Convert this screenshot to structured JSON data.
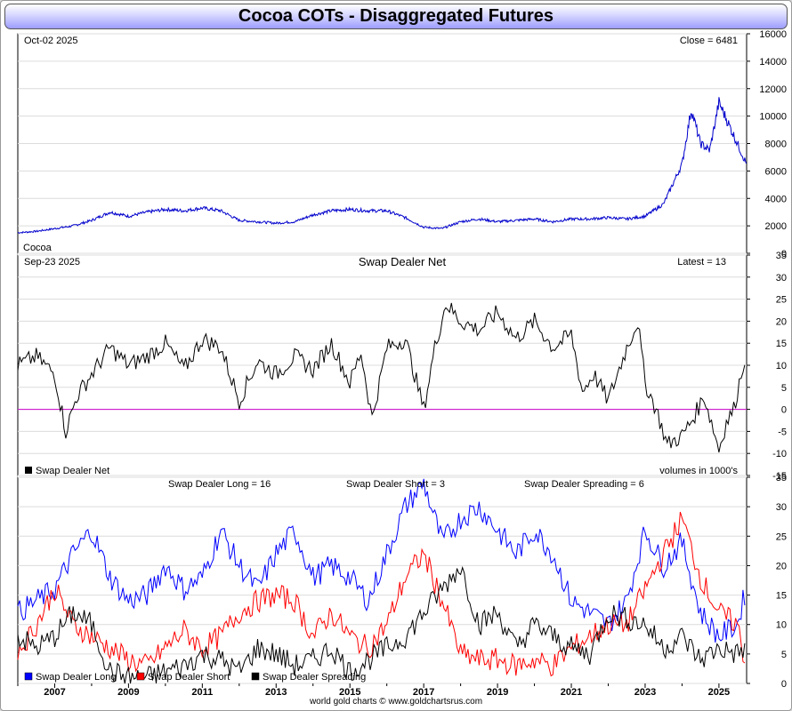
{
  "title": "Cocoa COTs - Disaggregated Futures",
  "footer": "world gold charts © www.goldchartsrus.com",
  "chart_data": [
    {
      "type": "line",
      "panel": "price",
      "date_label": "Oct-02  2025",
      "latest_label": "Close = 6481",
      "series_label": "Cocoa",
      "ylim": [
        0,
        16000
      ],
      "yticks": [
        "0",
        "2000",
        "4000",
        "6000",
        "8000",
        "10000",
        "12000",
        "14000",
        "16000"
      ],
      "color": "#0000cc",
      "series": [
        {
          "name": "Cocoa",
          "x": [
            2006.0,
            2006.5,
            2007.0,
            2007.5,
            2008.0,
            2008.5,
            2009.0,
            2009.5,
            2010.0,
            2010.5,
            2011.0,
            2011.5,
            2012.0,
            2012.5,
            2013.0,
            2013.5,
            2014.0,
            2014.5,
            2015.0,
            2015.5,
            2016.0,
            2016.5,
            2017.0,
            2017.5,
            2018.0,
            2018.5,
            2019.0,
            2019.5,
            2020.0,
            2020.5,
            2021.0,
            2021.5,
            2022.0,
            2022.5,
            2023.0,
            2023.5,
            2024.0,
            2024.25,
            2024.5,
            2024.75,
            2025.0,
            2025.25,
            2025.5,
            2025.75
          ],
          "values": [
            1500,
            1600,
            1800,
            2000,
            2400,
            3000,
            2700,
            3000,
            3200,
            3100,
            3300,
            3100,
            2400,
            2300,
            2200,
            2300,
            2800,
            3100,
            3200,
            3100,
            3100,
            2600,
            1900,
            1800,
            2300,
            2500,
            2300,
            2400,
            2500,
            2300,
            2500,
            2500,
            2600,
            2500,
            2700,
            3600,
            6500,
            10500,
            8000,
            7500,
            11000,
            9500,
            8000,
            6481
          ]
        }
      ]
    },
    {
      "type": "line",
      "panel": "net",
      "date_label": "Sep-23  2025",
      "title": "Swap Dealer Net",
      "latest_label": "Latest = 13",
      "legend": "Swap Dealer Net",
      "units_label": "volumes in 1000's",
      "ylim": [
        -15,
        35
      ],
      "yticks": [
        "-15",
        "-10",
        "-5",
        "0",
        "5",
        "10",
        "15",
        "20",
        "25",
        "30",
        "35"
      ],
      "color": "#000000",
      "zero_color": "#cc00cc",
      "series": [
        {
          "name": "Swap Dealer Net",
          "x": [
            2006.0,
            2006.5,
            2007.0,
            2007.3,
            2007.6,
            2008.0,
            2008.5,
            2009.0,
            2009.5,
            2010.0,
            2010.5,
            2011.0,
            2011.5,
            2012.0,
            2012.5,
            2013.0,
            2013.5,
            2014.0,
            2014.5,
            2015.0,
            2015.3,
            2015.6,
            2016.0,
            2016.5,
            2017.0,
            2017.3,
            2017.6,
            2018.0,
            2018.5,
            2019.0,
            2019.5,
            2020.0,
            2020.5,
            2021.0,
            2021.3,
            2021.6,
            2022.0,
            2022.5,
            2022.8,
            2023.0,
            2023.3,
            2023.6,
            2024.0,
            2024.3,
            2024.6,
            2025.0,
            2025.2,
            2025.4,
            2025.6,
            2025.73
          ],
          "values": [
            10,
            12,
            8,
            -5,
            3,
            8,
            14,
            10,
            12,
            15,
            9,
            16,
            14,
            2,
            11,
            8,
            12,
            9,
            15,
            6,
            13,
            -2,
            14,
            16,
            0,
            14,
            24,
            20,
            18,
            22,
            16,
            20,
            14,
            17,
            4,
            8,
            2,
            14,
            20,
            6,
            0,
            -8,
            -6,
            -2,
            3,
            -9,
            -3,
            0,
            8,
            13
          ]
        }
      ]
    },
    {
      "type": "line",
      "panel": "components",
      "labels": [
        "Swap Dealer Long = 16",
        "Swap Dealer Short = 3",
        "Swap Dealer Spreading = 6"
      ],
      "ylim": [
        0,
        35
      ],
      "yticks": [
        "0",
        "5",
        "10",
        "15",
        "20",
        "25",
        "30",
        "35"
      ],
      "xlim": [
        2006.0,
        2025.75
      ],
      "xticks": [
        "2007",
        "2009",
        "2011",
        "2013",
        "2015",
        "2017",
        "2019",
        "2021",
        "2023",
        "2025"
      ],
      "series": [
        {
          "name": "Swap Dealer Long",
          "color": "#0000ff",
          "x": [
            2006.0,
            2006.5,
            2007.0,
            2007.5,
            2008.0,
            2008.5,
            2009.0,
            2009.5,
            2010.0,
            2010.5,
            2011.0,
            2011.5,
            2012.0,
            2012.5,
            2013.0,
            2013.5,
            2014.0,
            2014.5,
            2015.0,
            2015.5,
            2016.0,
            2016.5,
            2017.0,
            2017.5,
            2018.0,
            2018.5,
            2019.0,
            2019.5,
            2020.0,
            2020.5,
            2021.0,
            2021.5,
            2022.0,
            2022.5,
            2023.0,
            2023.5,
            2024.0,
            2024.5,
            2025.0,
            2025.5,
            2025.73
          ],
          "values": [
            12,
            14,
            16,
            22,
            26,
            18,
            14,
            15,
            20,
            16,
            18,
            26,
            20,
            16,
            22,
            26,
            18,
            20,
            18,
            14,
            22,
            30,
            34,
            24,
            28,
            30,
            26,
            22,
            26,
            22,
            14,
            12,
            10,
            14,
            26,
            20,
            24,
            12,
            8,
            10,
            16
          ]
        },
        {
          "name": "Swap Dealer Short",
          "color": "#ff0000",
          "x": [
            2006.0,
            2006.5,
            2007.0,
            2007.5,
            2008.0,
            2008.5,
            2009.0,
            2009.5,
            2010.0,
            2010.5,
            2011.0,
            2011.5,
            2012.0,
            2012.5,
            2013.0,
            2013.5,
            2014.0,
            2014.5,
            2015.0,
            2015.5,
            2016.0,
            2016.5,
            2017.0,
            2017.5,
            2018.0,
            2018.5,
            2019.0,
            2019.5,
            2020.0,
            2020.5,
            2021.0,
            2021.5,
            2022.0,
            2022.5,
            2023.0,
            2023.5,
            2024.0,
            2024.5,
            2025.0,
            2025.5,
            2025.73
          ],
          "values": [
            5,
            10,
            16,
            10,
            8,
            6,
            4,
            3,
            6,
            9,
            6,
            8,
            12,
            14,
            15,
            14,
            8,
            12,
            8,
            6,
            10,
            18,
            22,
            14,
            5,
            4,
            4,
            3,
            4,
            3,
            6,
            8,
            10,
            10,
            16,
            22,
            28,
            18,
            12,
            10,
            3
          ]
        },
        {
          "name": "Swap Dealer Spreading",
          "color": "#000000",
          "x": [
            2006.0,
            2006.5,
            2007.0,
            2007.5,
            2008.0,
            2008.5,
            2009.0,
            2009.5,
            2010.0,
            2010.5,
            2011.0,
            2011.5,
            2012.0,
            2012.5,
            2013.0,
            2013.5,
            2014.0,
            2014.5,
            2015.0,
            2015.5,
            2016.0,
            2016.5,
            2017.0,
            2017.5,
            2018.0,
            2018.5,
            2019.0,
            2019.5,
            2020.0,
            2020.5,
            2021.0,
            2021.5,
            2022.0,
            2022.5,
            2023.0,
            2023.5,
            2024.0,
            2024.5,
            2025.0,
            2025.5,
            2025.73
          ],
          "values": [
            8,
            6,
            8,
            12,
            10,
            2,
            1,
            1,
            2,
            3,
            5,
            4,
            2,
            6,
            5,
            3,
            4,
            6,
            2,
            4,
            6,
            8,
            12,
            16,
            20,
            10,
            12,
            6,
            10,
            8,
            6,
            5,
            12,
            11,
            10,
            6,
            8,
            4,
            6,
            5,
            6
          ]
        }
      ]
    }
  ]
}
